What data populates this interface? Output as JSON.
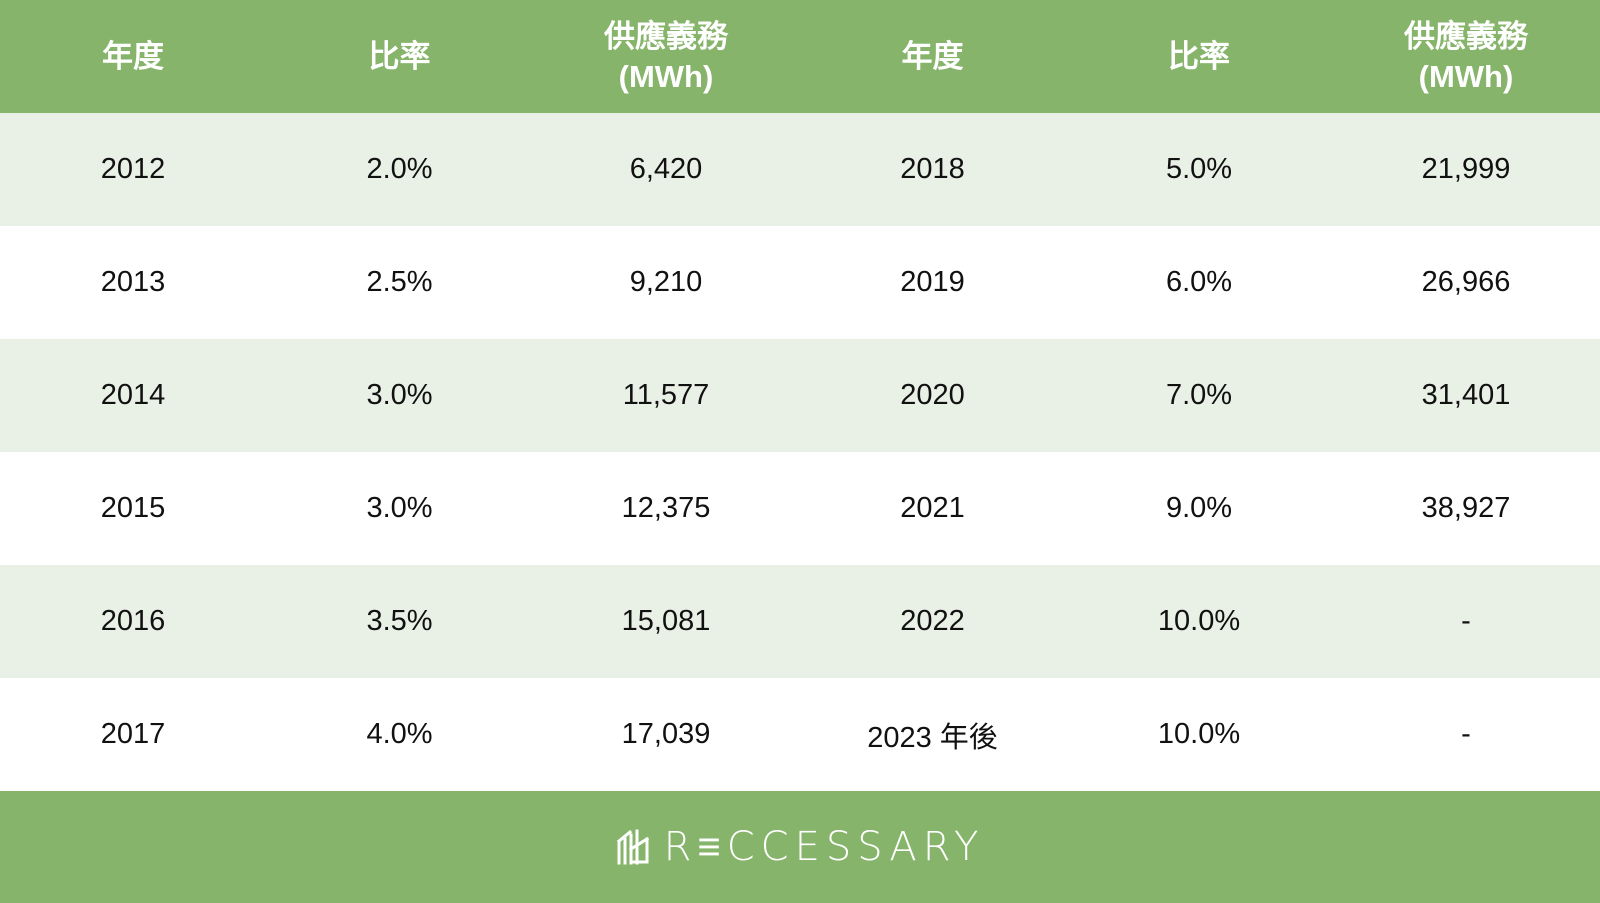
{
  "headers": [
    {
      "line1": "年度",
      "line2": ""
    },
    {
      "line1": "比率",
      "line2": ""
    },
    {
      "line1": "供應義務",
      "line2": "(MWh)"
    },
    {
      "line1": "年度",
      "line2": ""
    },
    {
      "line1": "比率",
      "line2": ""
    },
    {
      "line1": "供應義務",
      "line2": "(MWh)"
    }
  ],
  "rows": [
    [
      "2012",
      "2.0%",
      "6,420",
      "2018",
      "5.0%",
      "21,999"
    ],
    [
      "2013",
      "2.5%",
      "9,210",
      "2019",
      "6.0%",
      "26,966"
    ],
    [
      "2014",
      "3.0%",
      "11,577",
      "2020",
      "7.0%",
      "31,401"
    ],
    [
      "2015",
      "3.0%",
      "12,375",
      "2021",
      "9.0%",
      "38,927"
    ],
    [
      "2016",
      "3.5%",
      "15,081",
      "2022",
      "10.0%",
      "-"
    ],
    [
      "2017",
      "4.0%",
      "17,039",
      "2023 年後",
      "10.0%",
      "-"
    ]
  ],
  "footer": {
    "logo_icon": "reccessary-logo-icon",
    "brand": "R≡CCESSARY"
  },
  "colors": {
    "header_bg": "#85b46a",
    "stripe_bg": "#e9f0e5",
    "text": "#111111"
  }
}
